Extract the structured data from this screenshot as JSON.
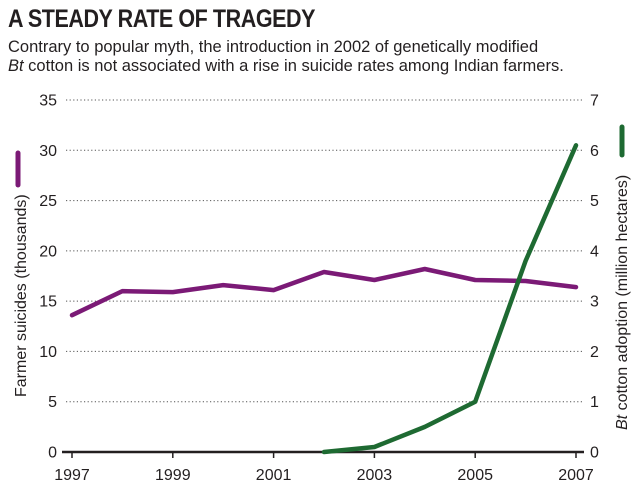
{
  "header": {
    "title": "A STEADY RATE OF TRAGEDY",
    "subtitle_line1": "Contrary to popular myth, the introduction in 2002 of genetically modified",
    "subtitle_bt": "Bt",
    "subtitle_line2": " cotton is not associated with a rise in suicide rates among Indian farmers."
  },
  "chart_data": {
    "type": "line",
    "title": "A STEADY RATE OF TRAGEDY",
    "x": [
      1997,
      1998,
      1999,
      2000,
      2001,
      2002,
      2003,
      2004,
      2005,
      2006,
      2007
    ],
    "x_ticks": [
      "1997",
      "1999",
      "2001",
      "2003",
      "2005",
      "2007"
    ],
    "xlim": [
      1997,
      2007
    ],
    "ylabel_left": "Farmer suicides (thousands)",
    "ylabel_right_italic": "Bt",
    "ylabel_right": " cotton adoption (million hectares)",
    "ylim_left": [
      0,
      35
    ],
    "ylim_right": [
      0,
      7
    ],
    "y_ticks_left": [
      "0",
      "5",
      "10",
      "15",
      "20",
      "25",
      "30",
      "35"
    ],
    "y_ticks_right": [
      "0",
      "1",
      "2",
      "3",
      "4",
      "5",
      "6",
      "7"
    ],
    "grid": "horizontal dotted",
    "series": [
      {
        "axis": "left",
        "color": "#7b1a76",
        "x": [
          1997,
          1998,
          1999,
          2000,
          2001,
          2002,
          2003,
          2004,
          2005,
          2006,
          2007
        ],
        "values": [
          13.6,
          16.0,
          15.9,
          16.6,
          16.1,
          17.9,
          17.1,
          18.2,
          17.1,
          17.0,
          16.4
        ]
      },
      {
        "axis": "right",
        "color": "#1e6a32",
        "x": [
          2002,
          2003,
          2004,
          2005,
          2006,
          2007
        ],
        "values": [
          0.0,
          0.1,
          0.5,
          1.0,
          3.8,
          6.1
        ]
      }
    ]
  }
}
